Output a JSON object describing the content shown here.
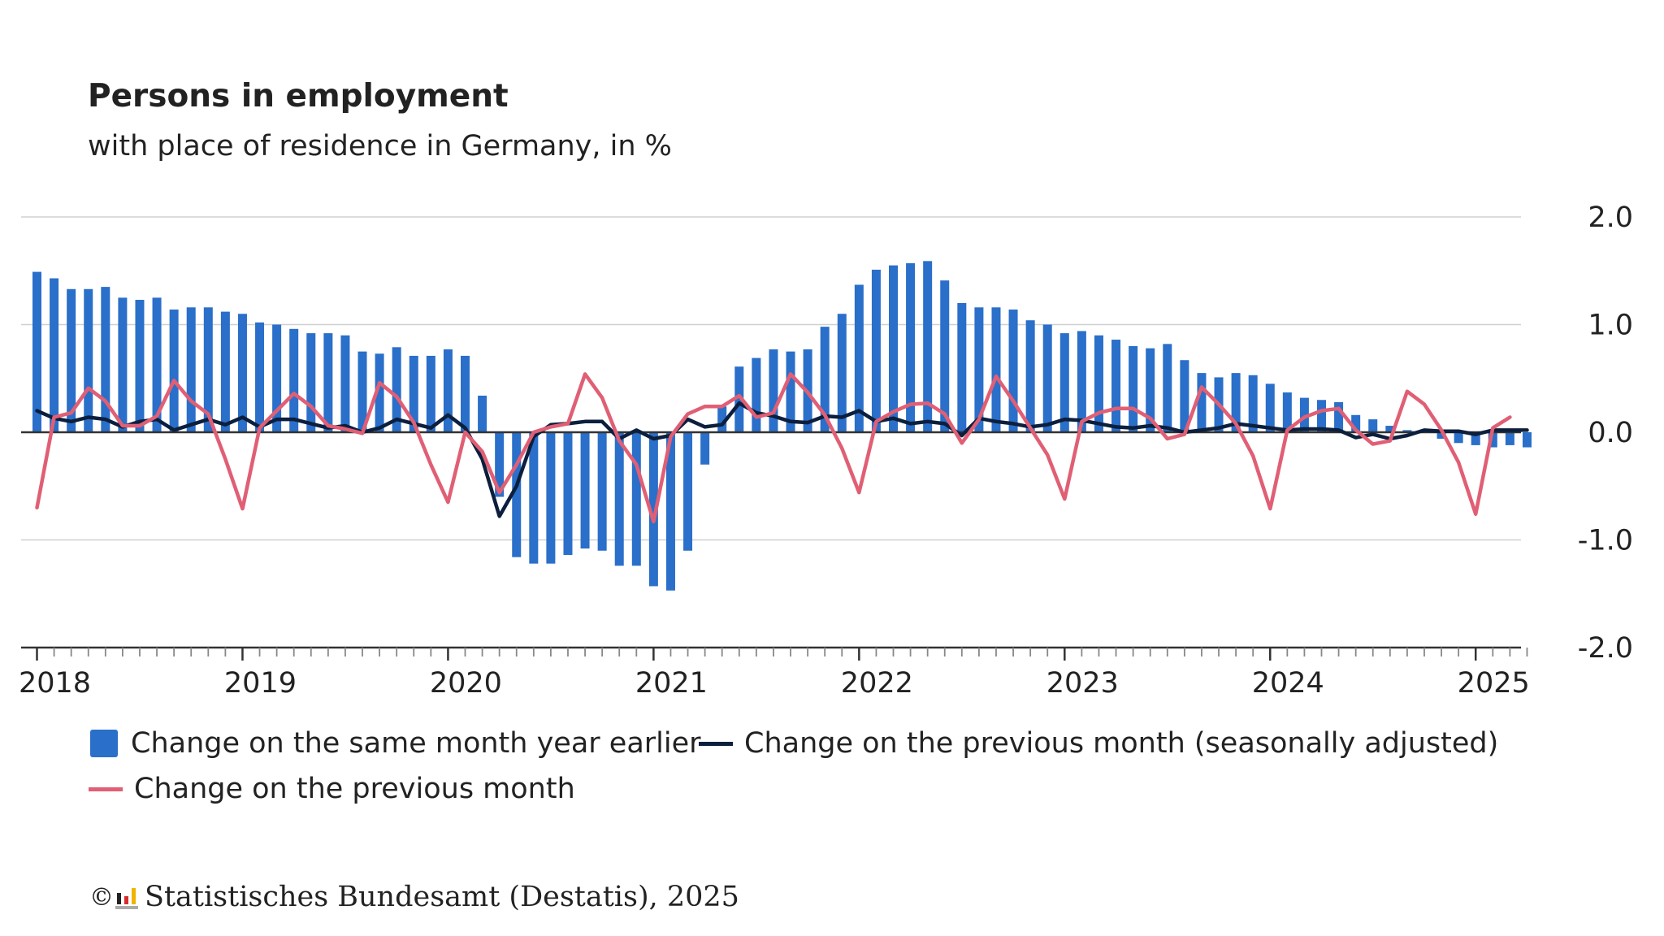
{
  "title": "Persons in employment",
  "subtitle": "with place of residence in Germany, in %",
  "legend": {
    "bars_label": "Change on the same month year earlier",
    "sa_label": "Change on the previous month (seasonally adjusted)",
    "mom_label": "Change on the previous month"
  },
  "footer": {
    "copyright": "©",
    "source": "Statistisches Bundesamt (Destatis), 2025"
  },
  "colors": {
    "bars": "#2a6fc9",
    "seasonally_adjusted": "#0c1f3d",
    "previous_month": "#e05f75",
    "grid": "#d0d0d0",
    "zero_line": "#333333",
    "axis": "#333333",
    "logo": [
      "#222222",
      "#d62b2b",
      "#f0b400"
    ]
  },
  "chart_data": {
    "type": "bar",
    "title": "Persons in employment",
    "subtitle": "with place of residence in Germany, in %",
    "xlabel": "",
    "ylabel": "",
    "ylim": [
      -2.0,
      2.0
    ],
    "yticks": [
      2.0,
      1.0,
      0.0,
      -1.0,
      -2.0
    ],
    "ytick_labels": [
      "2.0",
      "1.0",
      "0.0",
      "-1.0",
      "-2.0"
    ],
    "y_axis_side": "right",
    "grid": true,
    "legend_position": "bottom",
    "x_start": "2018-01",
    "x_end": "2025-03",
    "xtick_labels": [
      "2018",
      "2019",
      "2020",
      "2021",
      "2022",
      "2023",
      "2024",
      "2025"
    ],
    "series": [
      {
        "name": "Change on the same month year earlier",
        "type": "bar",
        "values": [
          1.49,
          1.43,
          1.33,
          1.33,
          1.35,
          1.25,
          1.23,
          1.25,
          1.14,
          1.16,
          1.16,
          1.12,
          1.1,
          1.02,
          1.0,
          0.96,
          0.92,
          0.92,
          0.9,
          0.75,
          0.73,
          0.79,
          0.71,
          0.71,
          0.77,
          0.71,
          0.34,
          -0.6,
          -1.16,
          -1.22,
          -1.22,
          -1.14,
          -1.08,
          -1.1,
          -1.24,
          -1.24,
          -1.43,
          -1.47,
          -1.1,
          -0.3,
          0.24,
          0.61,
          0.69,
          0.77,
          0.75,
          0.77,
          0.98,
          1.1,
          1.37,
          1.51,
          1.55,
          1.57,
          1.59,
          1.41,
          1.2,
          1.16,
          1.16,
          1.14,
          1.04,
          1.0,
          0.92,
          0.94,
          0.9,
          0.86,
          0.8,
          0.78,
          0.82,
          0.67,
          0.55,
          0.51,
          0.55,
          0.53,
          0.45,
          0.37,
          0.32,
          0.3,
          0.28,
          0.16,
          0.12,
          0.06,
          0.02,
          0.02,
          -0.06,
          -0.1,
          -0.12,
          -0.14,
          -0.12,
          -0.14
        ]
      },
      {
        "name": "Change on the previous month (seasonally adjusted)",
        "type": "line",
        "values": [
          0.2,
          0.13,
          0.1,
          0.14,
          0.12,
          0.05,
          0.1,
          0.12,
          0.02,
          0.07,
          0.12,
          0.07,
          0.14,
          0.05,
          0.12,
          0.12,
          0.08,
          0.04,
          0.06,
          0.0,
          0.04,
          0.12,
          0.08,
          0.04,
          0.16,
          0.04,
          -0.25,
          -0.78,
          -0.5,
          -0.04,
          0.07,
          0.08,
          0.1,
          0.1,
          -0.06,
          0.02,
          -0.06,
          -0.03,
          0.12,
          0.05,
          0.07,
          0.27,
          0.18,
          0.15,
          0.1,
          0.09,
          0.15,
          0.14,
          0.2,
          0.1,
          0.13,
          0.08,
          0.1,
          0.08,
          -0.03,
          0.13,
          0.1,
          0.08,
          0.05,
          0.07,
          0.12,
          0.11,
          0.08,
          0.05,
          0.04,
          0.06,
          0.04,
          0.0,
          0.02,
          0.04,
          0.08,
          0.06,
          0.04,
          0.02,
          0.03,
          0.03,
          0.02,
          -0.05,
          -0.02,
          -0.06,
          -0.03,
          0.02,
          0.01,
          0.01,
          -0.02,
          0.02,
          0.02,
          0.02
        ]
      },
      {
        "name": "Change on the previous month",
        "type": "line",
        "values": [
          -0.7,
          0.14,
          0.18,
          0.41,
          0.29,
          0.06,
          0.06,
          0.15,
          0.48,
          0.29,
          0.17,
          -0.25,
          -0.71,
          0.04,
          0.2,
          0.36,
          0.24,
          0.06,
          0.03,
          -0.01,
          0.46,
          0.33,
          0.09,
          -0.3,
          -0.65,
          0.0,
          -0.18,
          -0.56,
          -0.3,
          0.0,
          0.05,
          0.08,
          0.54,
          0.32,
          -0.08,
          -0.3,
          -0.83,
          -0.04,
          0.17,
          0.24,
          0.24,
          0.34,
          0.14,
          0.18,
          0.54,
          0.37,
          0.16,
          -0.15,
          -0.56,
          0.1,
          0.19,
          0.26,
          0.27,
          0.17,
          -0.1,
          0.12,
          0.52,
          0.29,
          0.04,
          -0.21,
          -0.62,
          0.1,
          0.18,
          0.22,
          0.22,
          0.13,
          -0.06,
          -0.02,
          0.42,
          0.26,
          0.08,
          -0.22,
          -0.71,
          0.02,
          0.14,
          0.2,
          0.22,
          0.02,
          -0.11,
          -0.08,
          0.38,
          0.26,
          0.02,
          -0.28,
          -0.76,
          0.04,
          0.14,
          null
        ]
      }
    ]
  }
}
